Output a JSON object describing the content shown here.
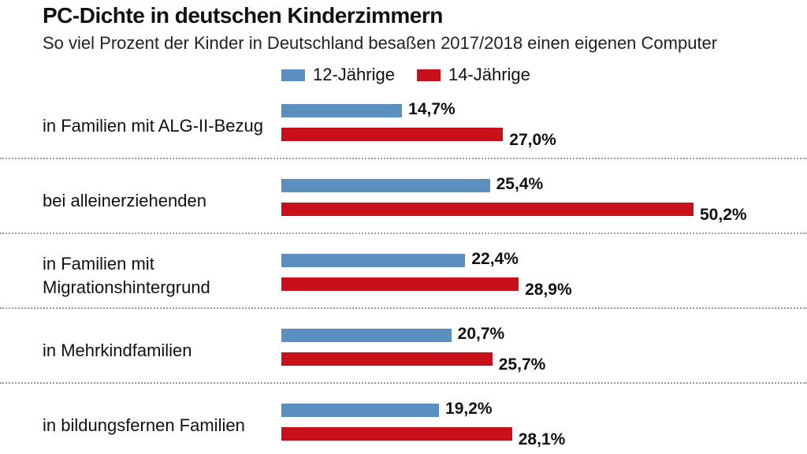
{
  "chart_data": {
    "type": "bar",
    "orientation": "horizontal",
    "title": "PC-Dichte in deutschen Kinderzimmern",
    "subtitle": "So viel Prozent der Kinder in Deutschland besaßen 2017/2018 einen eigenen Computer",
    "categories": [
      [
        "in Familien mit ALG-II-Bezug"
      ],
      [
        "bei alleinerziehenden"
      ],
      [
        "in Familien mit",
        "Migrationshintergrund"
      ],
      [
        "in Mehrkindfamilien"
      ],
      [
        "in bildungsfernen Familien"
      ]
    ],
    "series": [
      {
        "name": "12-Jährige",
        "color": "#5b8fc0",
        "values": [
          14.7,
          25.4,
          22.4,
          20.7,
          19.2
        ],
        "labels": [
          "14,7%",
          "25,4%",
          "22,4%",
          "20,7%",
          "19,2%"
        ]
      },
      {
        "name": "14-Jährige",
        "color": "#c8101a",
        "values": [
          27.0,
          50.2,
          28.9,
          25.7,
          28.1
        ],
        "labels": [
          "27,0%",
          "50,2%",
          "28,9%",
          "25,7%",
          "28,1%"
        ]
      }
    ],
    "legend_position": "top",
    "grid": false,
    "xlim": [
      0,
      50.2
    ]
  }
}
